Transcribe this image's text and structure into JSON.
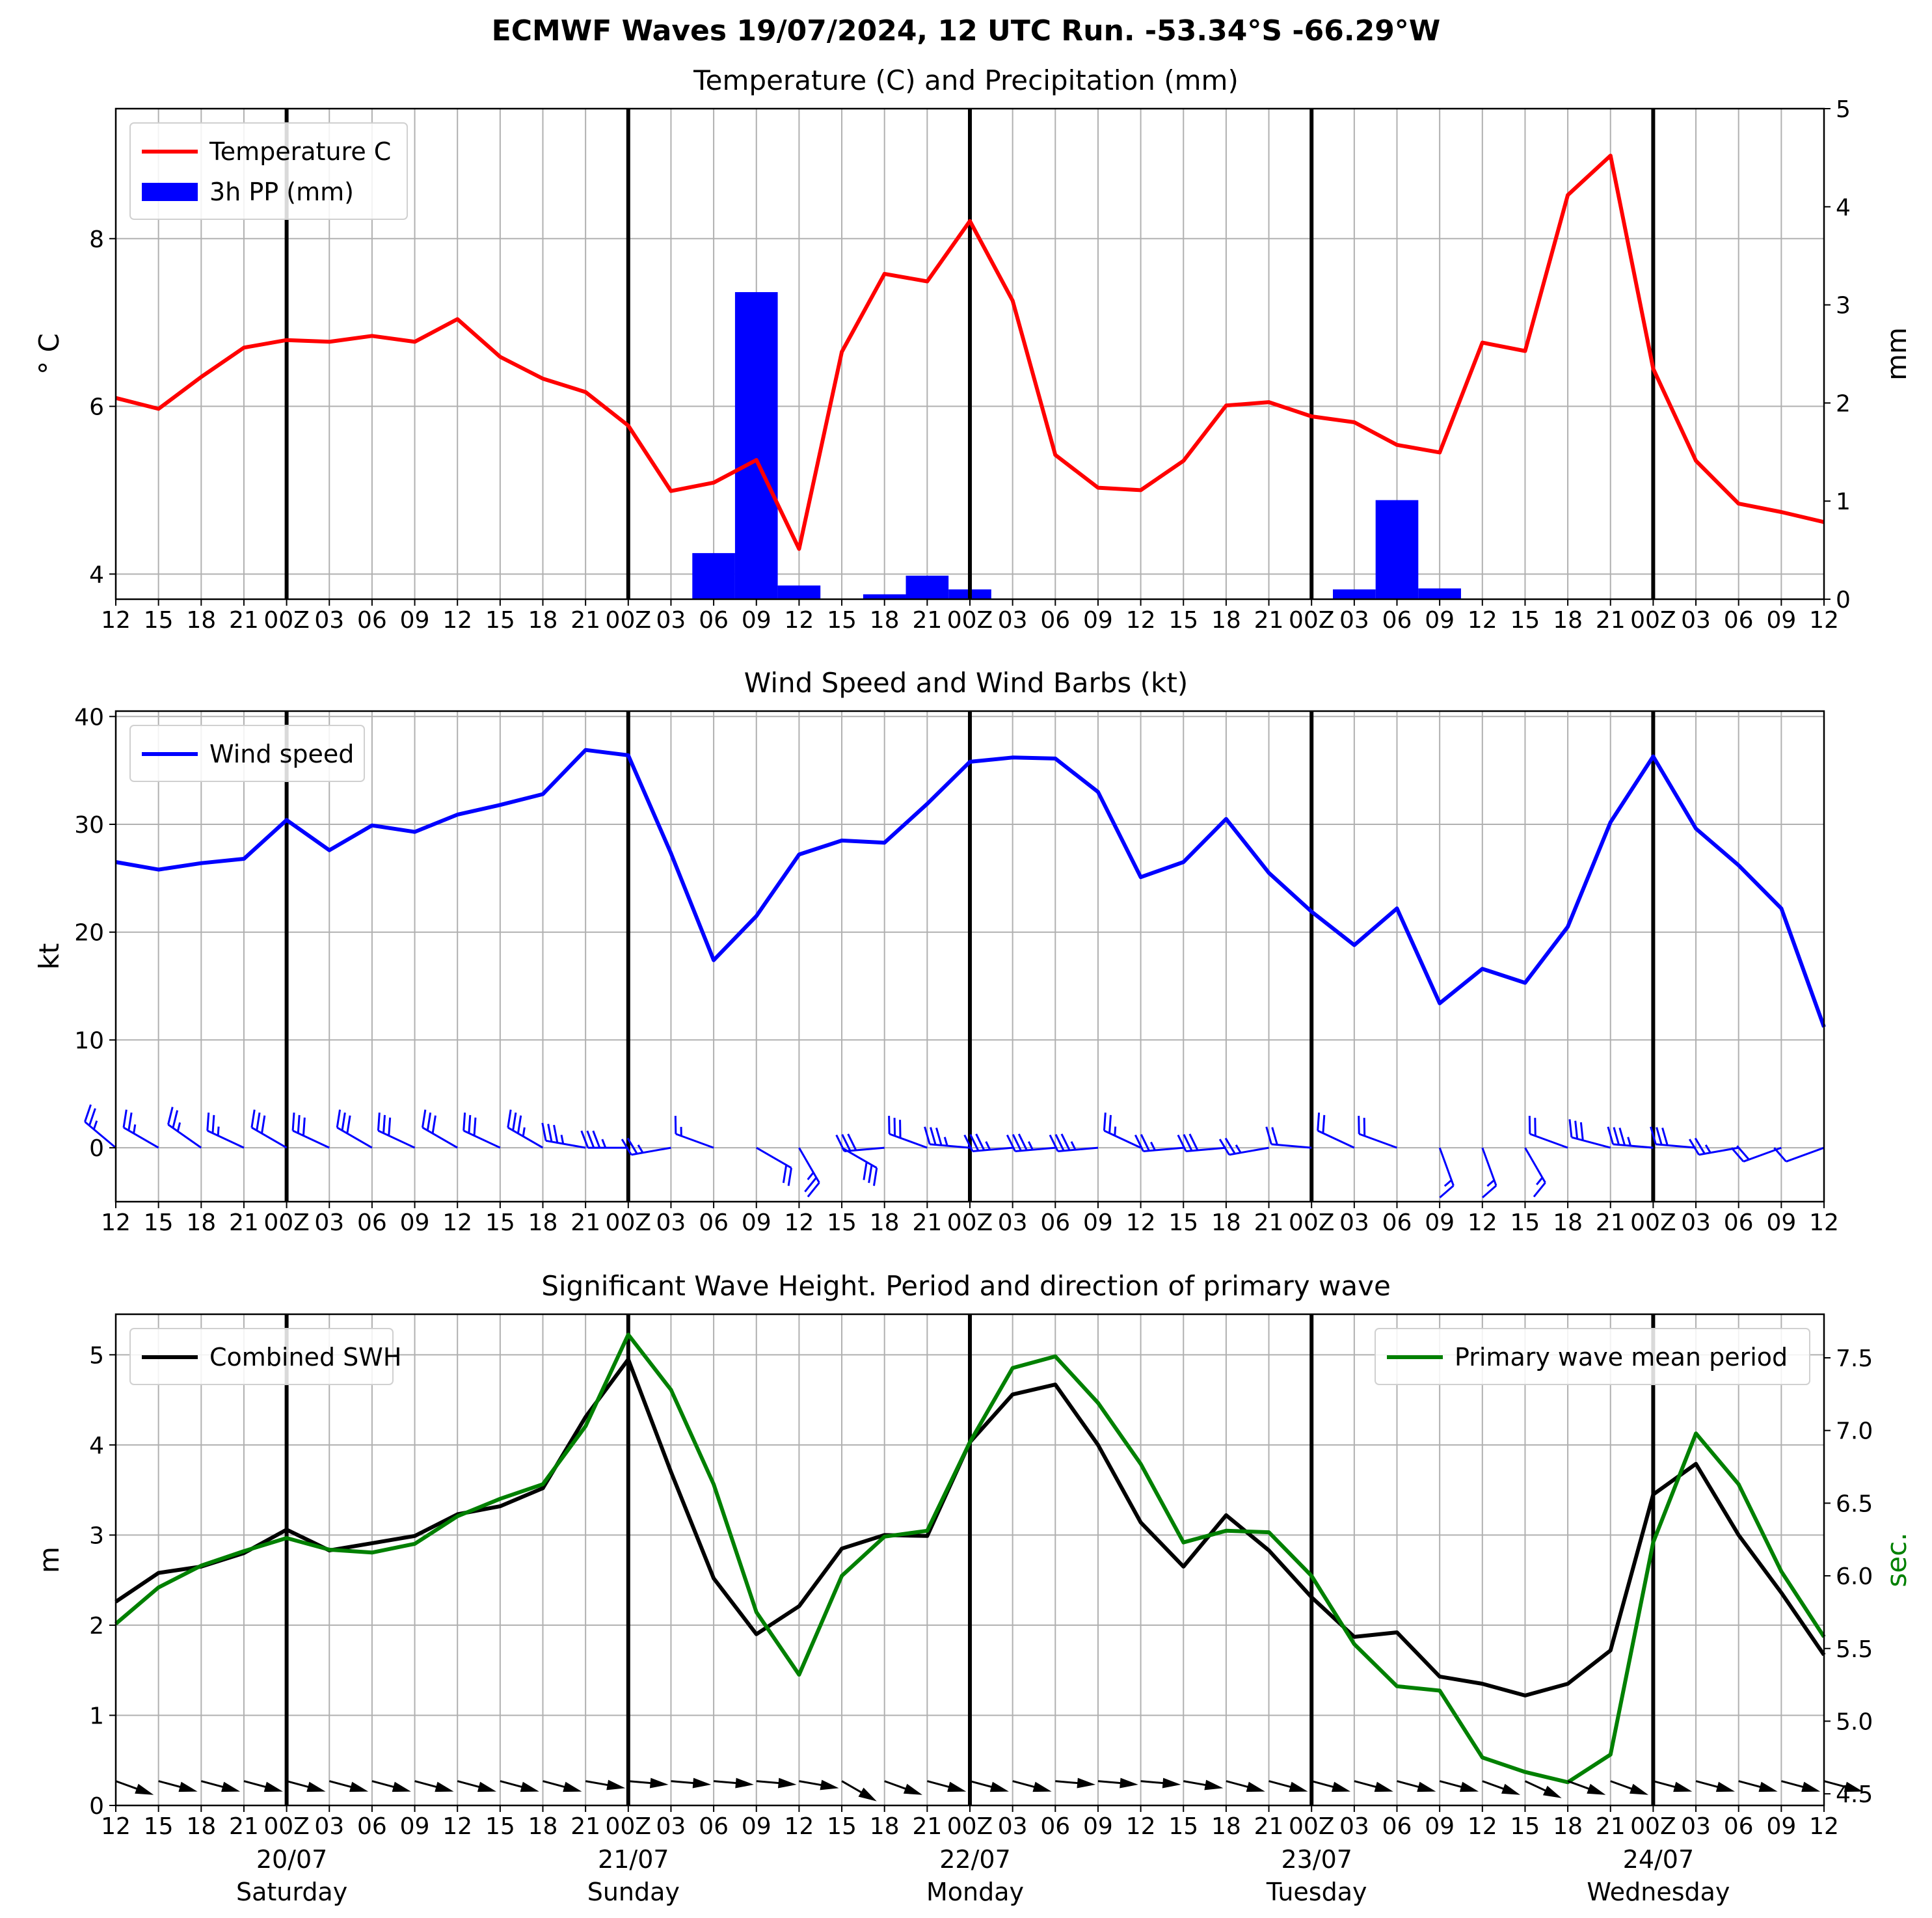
{
  "title": "ECMWF Waves 19/07/2024, 12 UTC Run. -53.34°S -66.29°W",
  "x_ticks": [
    "12",
    "15",
    "18",
    "21",
    "00Z",
    "03",
    "06",
    "09",
    "12",
    "15",
    "18",
    "21",
    "00Z",
    "03",
    "06",
    "09",
    "12",
    "15",
    "18",
    "21",
    "00Z",
    "03",
    "06",
    "09",
    "12",
    "15",
    "18",
    "21",
    "00Z",
    "03",
    "06",
    "09",
    "12",
    "15",
    "18",
    "21",
    "00Z",
    "03",
    "06",
    "09",
    "12"
  ],
  "days": [
    {
      "date": "20/07",
      "weekday": "Saturday"
    },
    {
      "date": "21/07",
      "weekday": "Sunday"
    },
    {
      "date": "22/07",
      "weekday": "Monday"
    },
    {
      "date": "23/07",
      "weekday": "Tuesday"
    },
    {
      "date": "24/07",
      "weekday": "Wednesday"
    }
  ],
  "chart_data": [
    {
      "type": "line",
      "title": "Temperature (C) and Precipitation (mm)",
      "ylabel": "$^\\circ$C",
      "ylabel_display": "° C",
      "y2label": "mm",
      "ylim": [
        3.7,
        9.55
      ],
      "y2lim": [
        0,
        5
      ],
      "yticks": [
        4,
        6,
        8
      ],
      "y2ticks": [
        0,
        1,
        2,
        3,
        4,
        5
      ],
      "grid": true,
      "legend": "top-left",
      "series": [
        {
          "name": "Temperature C",
          "kind": "line",
          "color": "#ff0000",
          "axis": "left",
          "values": [
            6.1,
            5.97,
            6.35,
            6.7,
            6.79,
            6.77,
            6.84,
            6.77,
            7.04,
            6.59,
            6.33,
            6.17,
            5.77,
            4.99,
            5.09,
            5.36,
            4.3,
            6.65,
            7.58,
            7.49,
            8.21,
            7.26,
            5.42,
            5.03,
            5.0,
            5.35,
            6.01,
            6.05,
            5.88,
            5.81,
            5.54,
            5.45,
            6.76,
            6.66,
            8.52,
            8.99,
            6.45,
            5.35,
            4.84,
            4.74,
            4.62
          ]
        },
        {
          "name": "3h PP (mm)",
          "kind": "bar",
          "color": "#0000ff",
          "axis": "right",
          "values": [
            0,
            0,
            0,
            0,
            0,
            0,
            0,
            0,
            0,
            0,
            0,
            0,
            0,
            0,
            0.47,
            3.13,
            0.14,
            0,
            0.05,
            0.24,
            0.1,
            0,
            0,
            0,
            0,
            0,
            0,
            0,
            0,
            0.1,
            1.01,
            0.11,
            0,
            0,
            0,
            0,
            0,
            0,
            0,
            0,
            0
          ]
        }
      ]
    },
    {
      "type": "line",
      "title": "Wind Speed and Wind Barbs (kt)",
      "ylabel": "kt",
      "ylim": [
        -5,
        40.5
      ],
      "yticks": [
        0,
        10,
        20,
        30,
        40
      ],
      "grid": true,
      "legend": "top-left",
      "series": [
        {
          "name": "Wind speed",
          "kind": "line",
          "color": "#0000ff",
          "values": [
            26.5,
            25.8,
            26.4,
            26.8,
            30.4,
            27.6,
            29.9,
            29.3,
            30.9,
            31.8,
            32.8,
            36.9,
            36.4,
            27.3,
            17.4,
            21.5,
            27.2,
            28.5,
            28.3,
            31.9,
            35.8,
            36.2,
            36.1,
            33.0,
            25.1,
            26.5,
            30.5,
            25.5,
            21.9,
            18.8,
            22.2,
            13.4,
            16.6,
            15.3,
            20.5,
            30.2,
            36.3,
            29.6,
            26.2,
            22.2,
            11.2
          ]
        },
        {
          "name": "",
          "kind": "barbs",
          "color": "#0000ff",
          "direction_deg": [
            130,
            120,
            125,
            115,
            120,
            115,
            120,
            115,
            120,
            115,
            120,
            100,
            90,
            80,
            110,
            300,
            330,
            300,
            85,
            110,
            95,
            85,
            85,
            85,
            115,
            85,
            85,
            80,
            95,
            115,
            110,
            340,
            340,
            330,
            110,
            105,
            95,
            95,
            80,
            70,
            70
          ]
        }
      ]
    },
    {
      "type": "line",
      "title": "Significant Wave Height. Period and direction of primary wave",
      "ylabel": "m",
      "y2label": "sec.",
      "ylim": [
        0,
        5.45
      ],
      "y2lim": [
        4.42,
        7.8
      ],
      "yticks": [
        0,
        1,
        2,
        3,
        4,
        5
      ],
      "y2ticks": [
        4.5,
        5.0,
        5.5,
        6.0,
        6.5,
        7.0,
        7.5
      ],
      "grid": true,
      "series": [
        {
          "name": "Combined SWH",
          "kind": "line",
          "color": "#000000",
          "axis": "left",
          "legend": "top-left",
          "values": [
            2.26,
            2.58,
            2.65,
            2.8,
            3.06,
            2.83,
            2.91,
            2.99,
            3.23,
            3.32,
            3.52,
            4.31,
            4.95,
            3.7,
            2.52,
            1.9,
            2.21,
            2.85,
            3.0,
            2.99,
            4.03,
            4.56,
            4.67,
            4.0,
            3.14,
            2.65,
            3.22,
            2.83,
            2.31,
            1.87,
            1.92,
            1.43,
            1.35,
            1.22,
            1.35,
            1.72,
            3.45,
            3.79,
            3.0,
            2.36,
            1.67
          ]
        },
        {
          "name": "Primary wave mean period",
          "kind": "line",
          "color": "#008000",
          "axis": "right",
          "legend": "top-right",
          "values": [
            5.67,
            5.92,
            6.07,
            6.17,
            6.26,
            6.18,
            6.16,
            6.22,
            6.41,
            6.53,
            6.63,
            7.03,
            7.66,
            7.28,
            6.63,
            5.75,
            5.32,
            6.0,
            6.27,
            6.31,
            6.92,
            7.43,
            7.51,
            7.19,
            6.77,
            6.23,
            6.31,
            6.3,
            6.0,
            5.53,
            5.24,
            5.21,
            4.75,
            4.65,
            4.58,
            4.77,
            6.23,
            6.98,
            6.63,
            6.03,
            5.58
          ]
        },
        {
          "name": "",
          "kind": "direction-arrows",
          "color": "#000000",
          "direction_deg": [
            290,
            285,
            285,
            285,
            285,
            285,
            285,
            285,
            285,
            285,
            285,
            280,
            275,
            275,
            275,
            275,
            280,
            300,
            290,
            285,
            285,
            285,
            275,
            275,
            275,
            280,
            285,
            285,
            285,
            285,
            285,
            285,
            290,
            295,
            290,
            290,
            285,
            285,
            285,
            285,
            285
          ]
        }
      ]
    }
  ]
}
